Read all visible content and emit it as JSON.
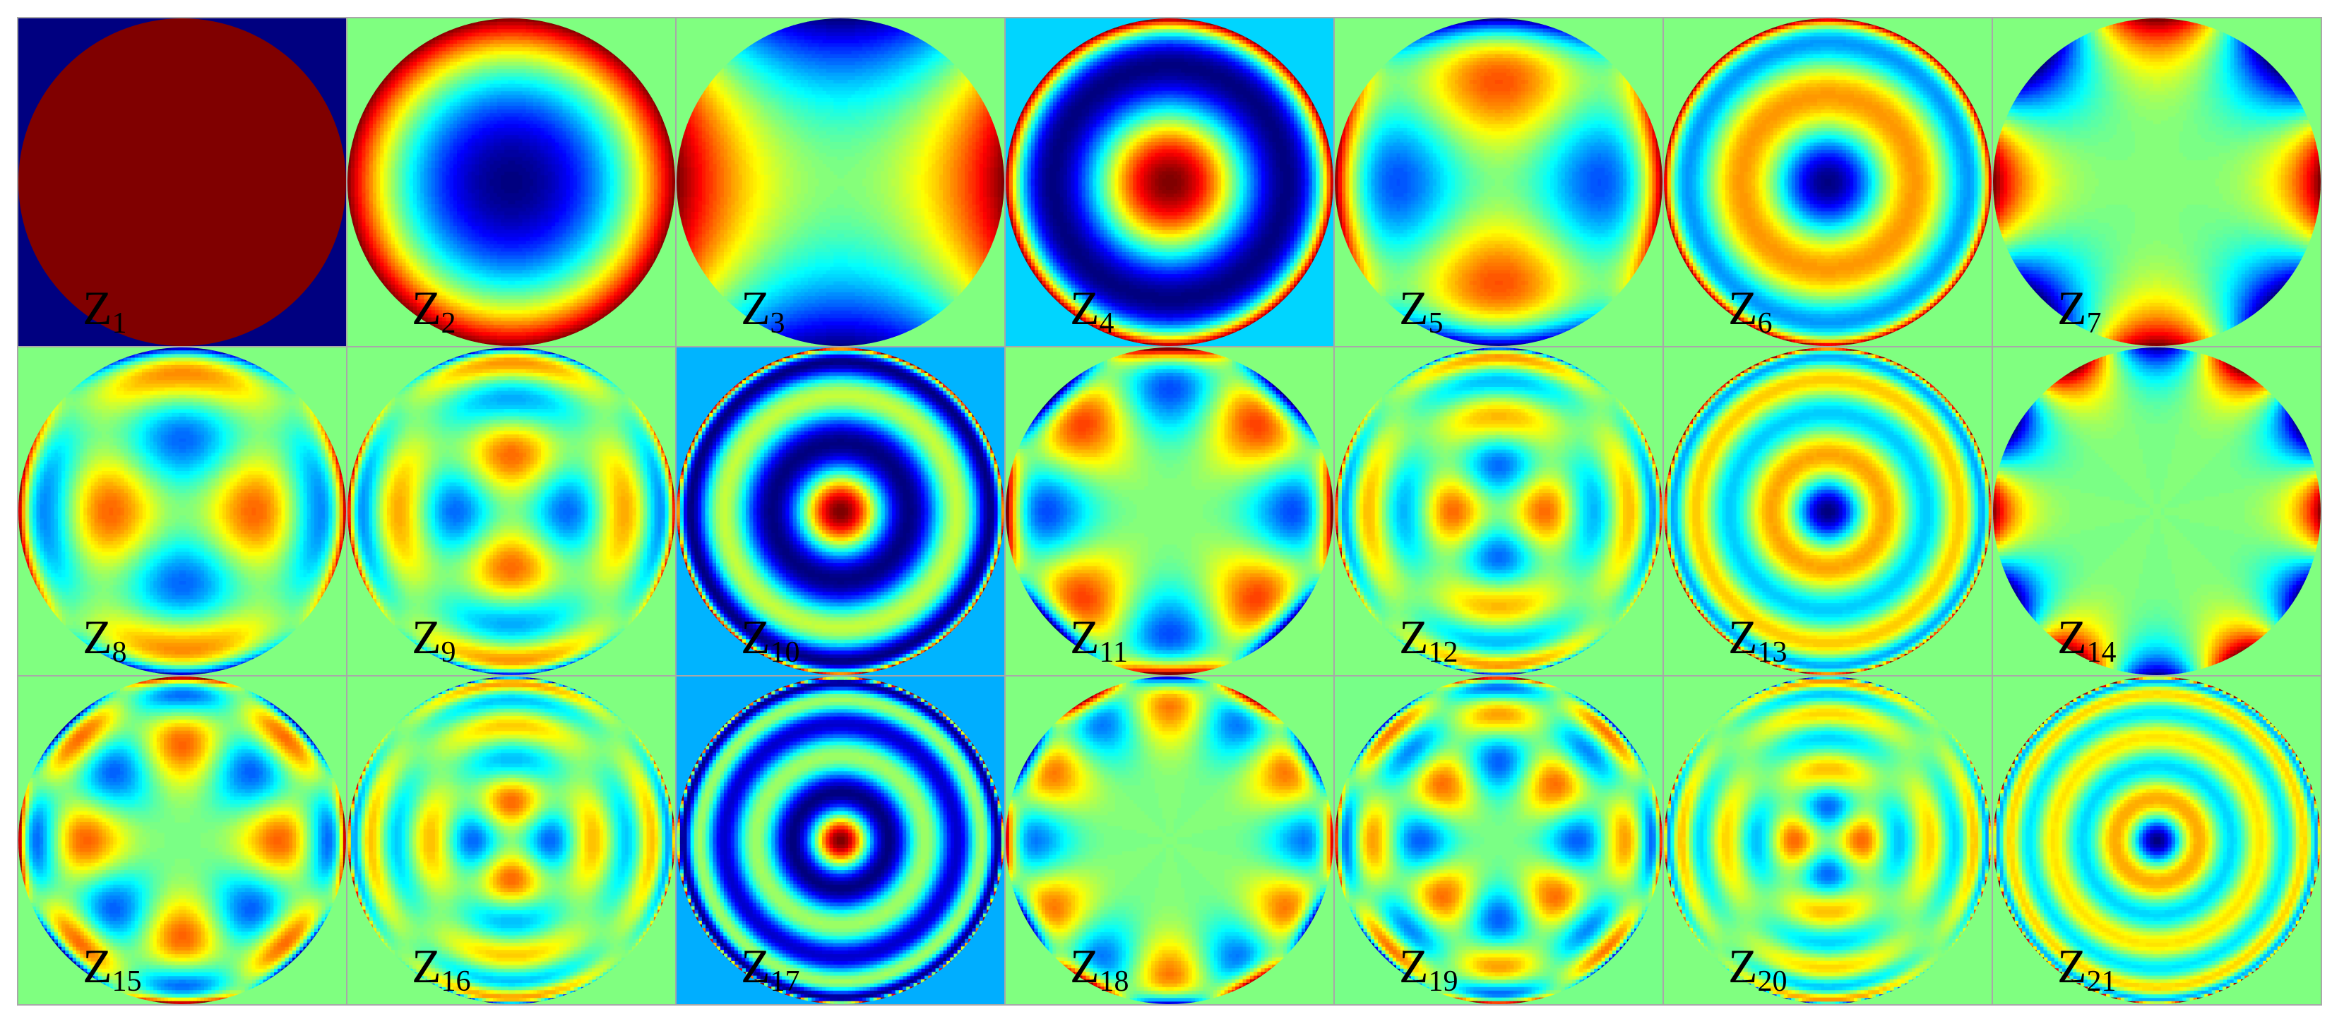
{
  "tiles": [
    {
      "symbol": "Z",
      "subscript": "1"
    },
    {
      "symbol": "Z",
      "subscript": "2"
    },
    {
      "symbol": "Z",
      "subscript": "3"
    },
    {
      "symbol": "Z",
      "subscript": "4"
    },
    {
      "symbol": "Z",
      "subscript": "5"
    },
    {
      "symbol": "Z",
      "subscript": "6"
    },
    {
      "symbol": "Z",
      "subscript": "7"
    },
    {
      "symbol": "Z",
      "subscript": "8"
    },
    {
      "symbol": "Z",
      "subscript": "9"
    },
    {
      "symbol": "Z",
      "subscript": "10"
    },
    {
      "symbol": "Z",
      "subscript": "11"
    },
    {
      "symbol": "Z",
      "subscript": "12"
    },
    {
      "symbol": "Z",
      "subscript": "13"
    },
    {
      "symbol": "Z",
      "subscript": "14"
    },
    {
      "symbol": "Z",
      "subscript": "15"
    },
    {
      "symbol": "Z",
      "subscript": "16"
    },
    {
      "symbol": "Z",
      "subscript": "17"
    },
    {
      "symbol": "Z",
      "subscript": "18"
    },
    {
      "symbol": "Z",
      "subscript": "19"
    },
    {
      "symbol": "Z",
      "subscript": "20"
    },
    {
      "symbol": "Z",
      "subscript": "21"
    }
  ]
}
